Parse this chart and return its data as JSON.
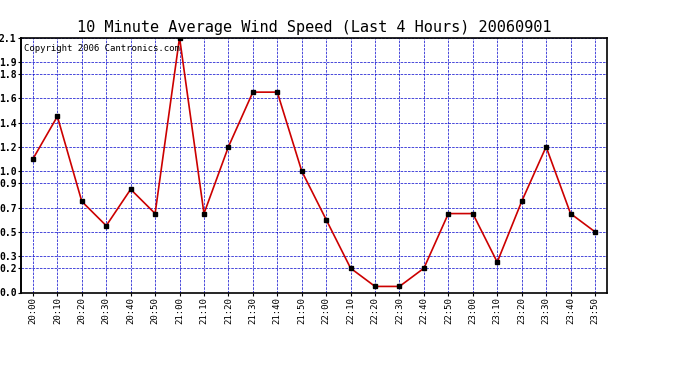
{
  "title": "10 Minute Average Wind Speed (Last 4 Hours) 20060901",
  "copyright": "Copyright 2006 Cantronics.com",
  "x_labels": [
    "20:00",
    "20:10",
    "20:20",
    "20:30",
    "20:40",
    "20:50",
    "21:00",
    "21:10",
    "21:20",
    "21:30",
    "21:40",
    "21:50",
    "22:00",
    "22:10",
    "22:20",
    "22:30",
    "22:40",
    "22:50",
    "23:00",
    "23:10",
    "23:20",
    "23:30",
    "23:40",
    "23:50"
  ],
  "y_values": [
    1.1,
    1.45,
    0.75,
    0.55,
    0.85,
    0.65,
    2.1,
    0.65,
    1.2,
    1.65,
    1.65,
    1.0,
    0.6,
    0.2,
    0.05,
    0.05,
    0.2,
    0.65,
    0.65,
    0.25,
    0.75,
    1.2,
    0.65,
    0.5
  ],
  "line_color": "#cc0000",
  "marker_color": "#000000",
  "bg_color": "#ffffff",
  "plot_bg": "#ffffff",
  "grid_color": "#0000cc",
  "border_color": "#000000",
  "ylim": [
    0.0,
    2.1
  ],
  "yticks": [
    0.0,
    0.2,
    0.3,
    0.5,
    0.7,
    0.9,
    1.0,
    1.2,
    1.4,
    1.6,
    1.8,
    1.9,
    2.1
  ],
  "title_fontsize": 11,
  "copyright_fontsize": 6.5
}
